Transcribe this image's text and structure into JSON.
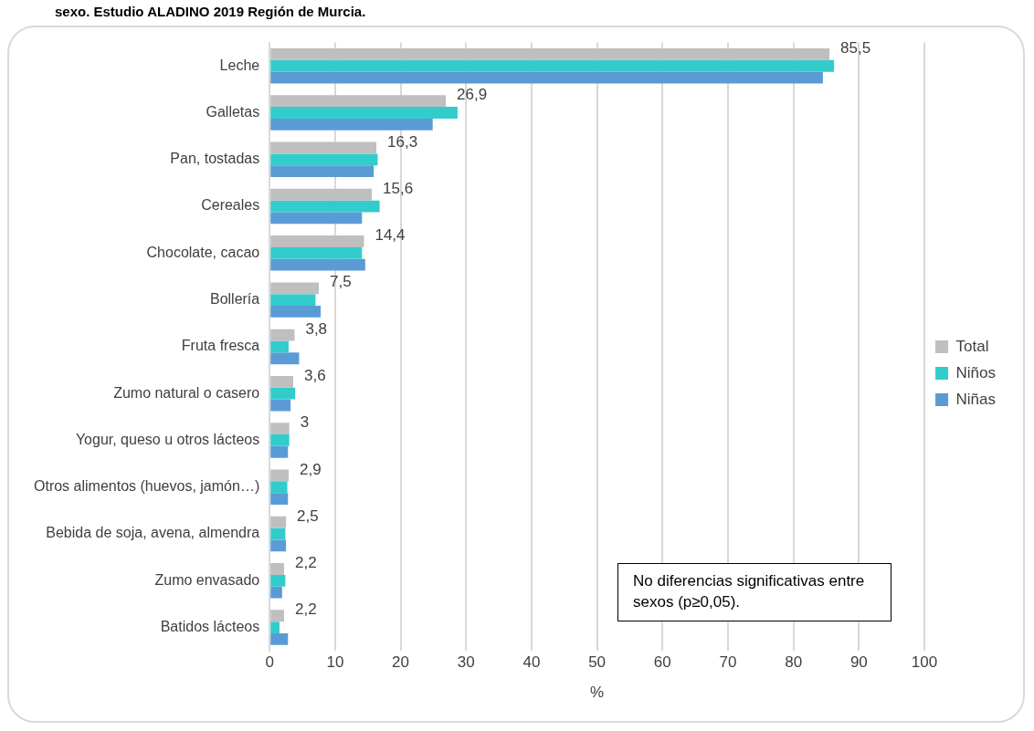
{
  "chart_data": {
    "type": "bar",
    "orientation": "horizontal",
    "title": "sexo. Estudio ALADINO 2019 Región de Murcia.",
    "xlabel": "%",
    "categories": [
      "Leche",
      "Galletas",
      "Pan, tostadas",
      "Cereales",
      "Chocolate, cacao",
      "Bollería",
      "Fruta fresca",
      "Zumo natural o casero",
      "Yogur, queso u otros lácteos",
      "Otros alimentos (huevos, jamón…)",
      "Bebida de soja, avena, almendra",
      "Zumo envasado",
      "Batidos lácteos"
    ],
    "series": [
      {
        "name": "Total",
        "color": "#bfbfbf",
        "values": [
          85.5,
          26.9,
          16.3,
          15.6,
          14.4,
          7.5,
          3.8,
          3.6,
          3,
          2.9,
          2.5,
          2.2,
          2.2
        ],
        "value_labels": [
          "85,5",
          "26,9",
          "16,3",
          "15,6",
          "14,4",
          "7,5",
          "3,8",
          "3,6",
          "3",
          "2,9",
          "2,5",
          "2,2",
          "2,2"
        ]
      },
      {
        "name": "Niños",
        "color": "#33cccc",
        "values": [
          86.2,
          28.7,
          16.5,
          16.8,
          14.1,
          7.0,
          2.9,
          3.9,
          3.0,
          2.7,
          2.4,
          2.4,
          1.5
        ]
      },
      {
        "name": "Niñas",
        "color": "#5b9bd5",
        "values": [
          84.5,
          24.9,
          15.9,
          14.1,
          14.6,
          7.8,
          4.5,
          3.2,
          2.8,
          2.8,
          2.5,
          1.9,
          2.8
        ]
      }
    ],
    "xlim": [
      0,
      100
    ],
    "xticks": [
      0,
      10,
      20,
      30,
      40,
      50,
      60,
      70,
      80,
      90,
      100
    ],
    "grid": "x",
    "legend": "right",
    "annotations": [
      "No diferencias significativas entre sexos (p≥0,05)."
    ]
  }
}
